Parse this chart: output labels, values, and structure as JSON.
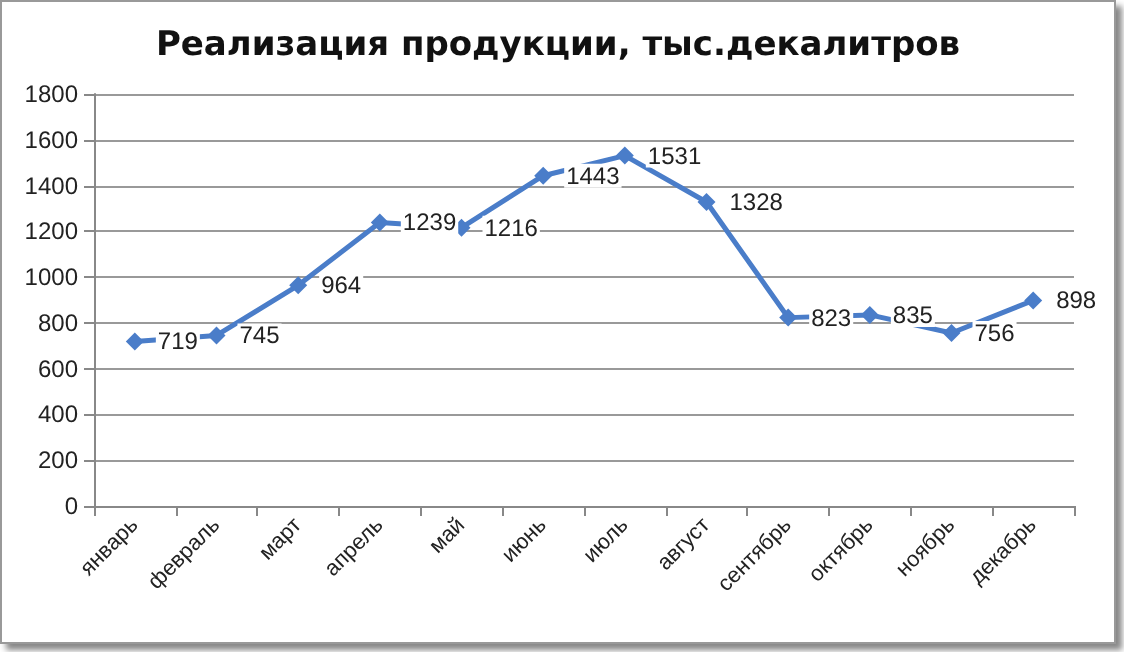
{
  "chart_data": {
    "type": "line",
    "title": "Реализация продукции, тыс.декалитров",
    "categories": [
      "январь",
      "февраль",
      "март",
      "апрель",
      "май",
      "июнь",
      "июль",
      "август",
      "сентябрь",
      "октябрь",
      "ноябрь",
      "декабрь"
    ],
    "values": [
      719,
      745,
      964,
      1239,
      1216,
      1443,
      1531,
      1328,
      823,
      835,
      756,
      898
    ],
    "color": "#4a7dc9",
    "ylim": [
      0,
      1800
    ],
    "yticks": [
      0,
      200,
      400,
      600,
      800,
      1000,
      1200,
      1400,
      1600,
      1800
    ],
    "grid": "y",
    "marker": "diamond",
    "line_style": "solid",
    "data_labels": true
  }
}
